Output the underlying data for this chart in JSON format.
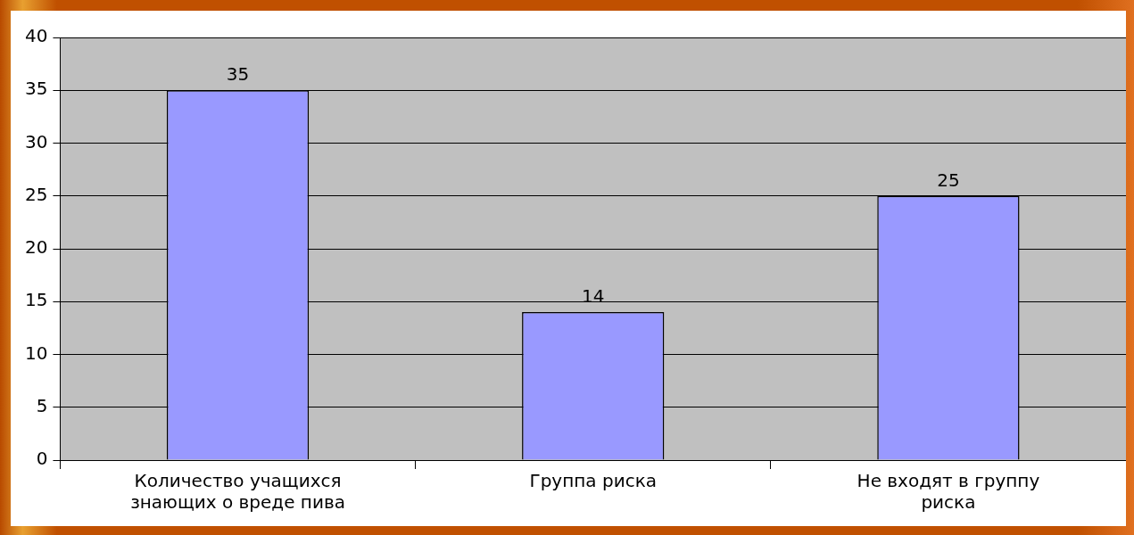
{
  "chart_data": {
    "type": "bar",
    "categories": [
      "Количество учащихся знающих о вреде пива",
      "Группа риска",
      "Не входят в группу риска"
    ],
    "values": [
      35,
      14,
      25
    ],
    "color": "#9999ff",
    "ylim": [
      0,
      40
    ],
    "yticks": [
      0,
      5,
      10,
      15,
      20,
      25,
      30,
      35,
      40
    ],
    "grid": "y",
    "legend": false,
    "data_labels": true
  }
}
